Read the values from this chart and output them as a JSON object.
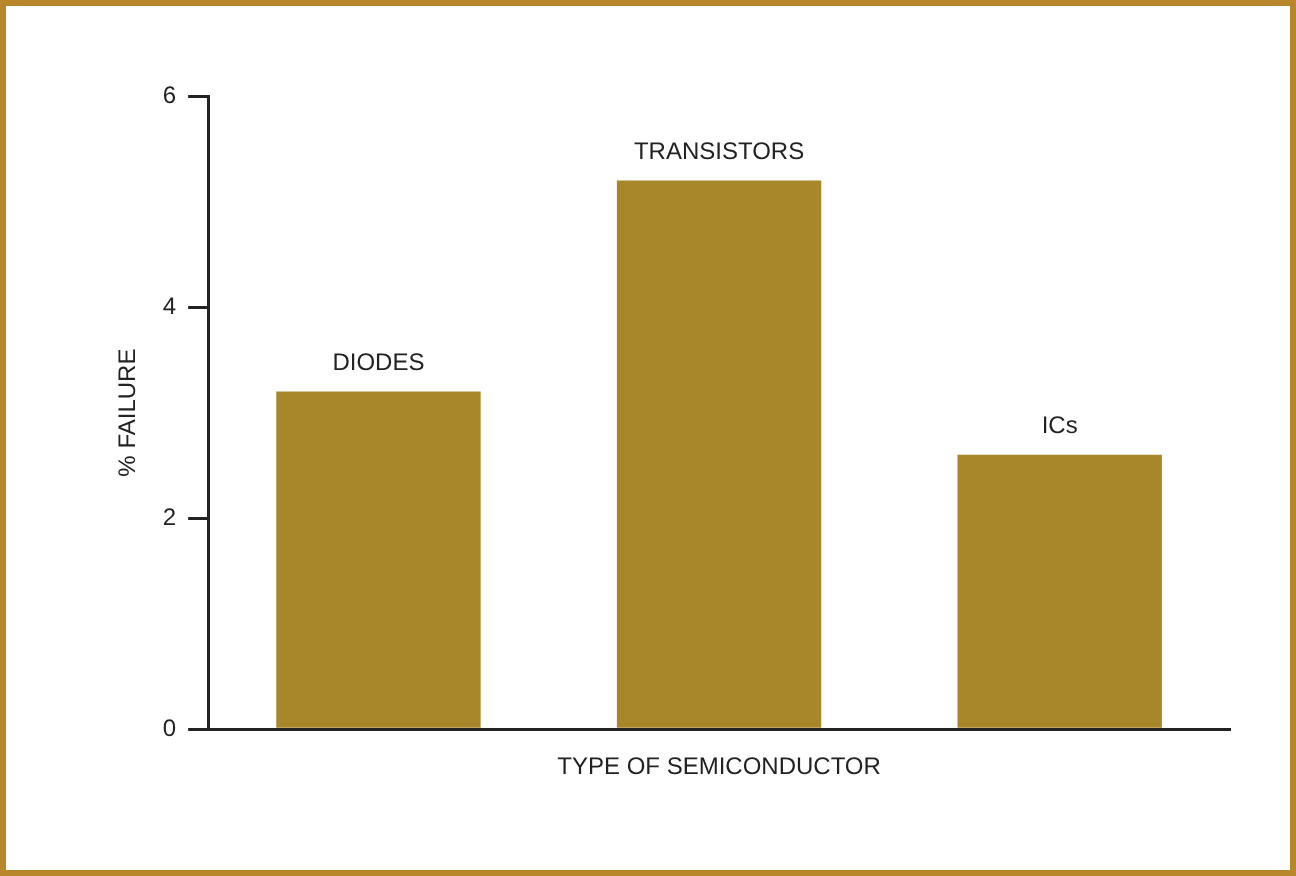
{
  "chart_data": {
    "type": "bar",
    "categories": [
      "DIODES",
      "TRANSISTORS",
      "ICs"
    ],
    "values": [
      3.2,
      5.2,
      2.6
    ],
    "color": "#a8862a",
    "xlabel": "TYPE OF SEMICONDUCTOR",
    "ylabel": "% FAILURE",
    "ylim": [
      0,
      6
    ],
    "yticks": [
      0,
      2,
      4,
      6
    ],
    "legend": false
  }
}
